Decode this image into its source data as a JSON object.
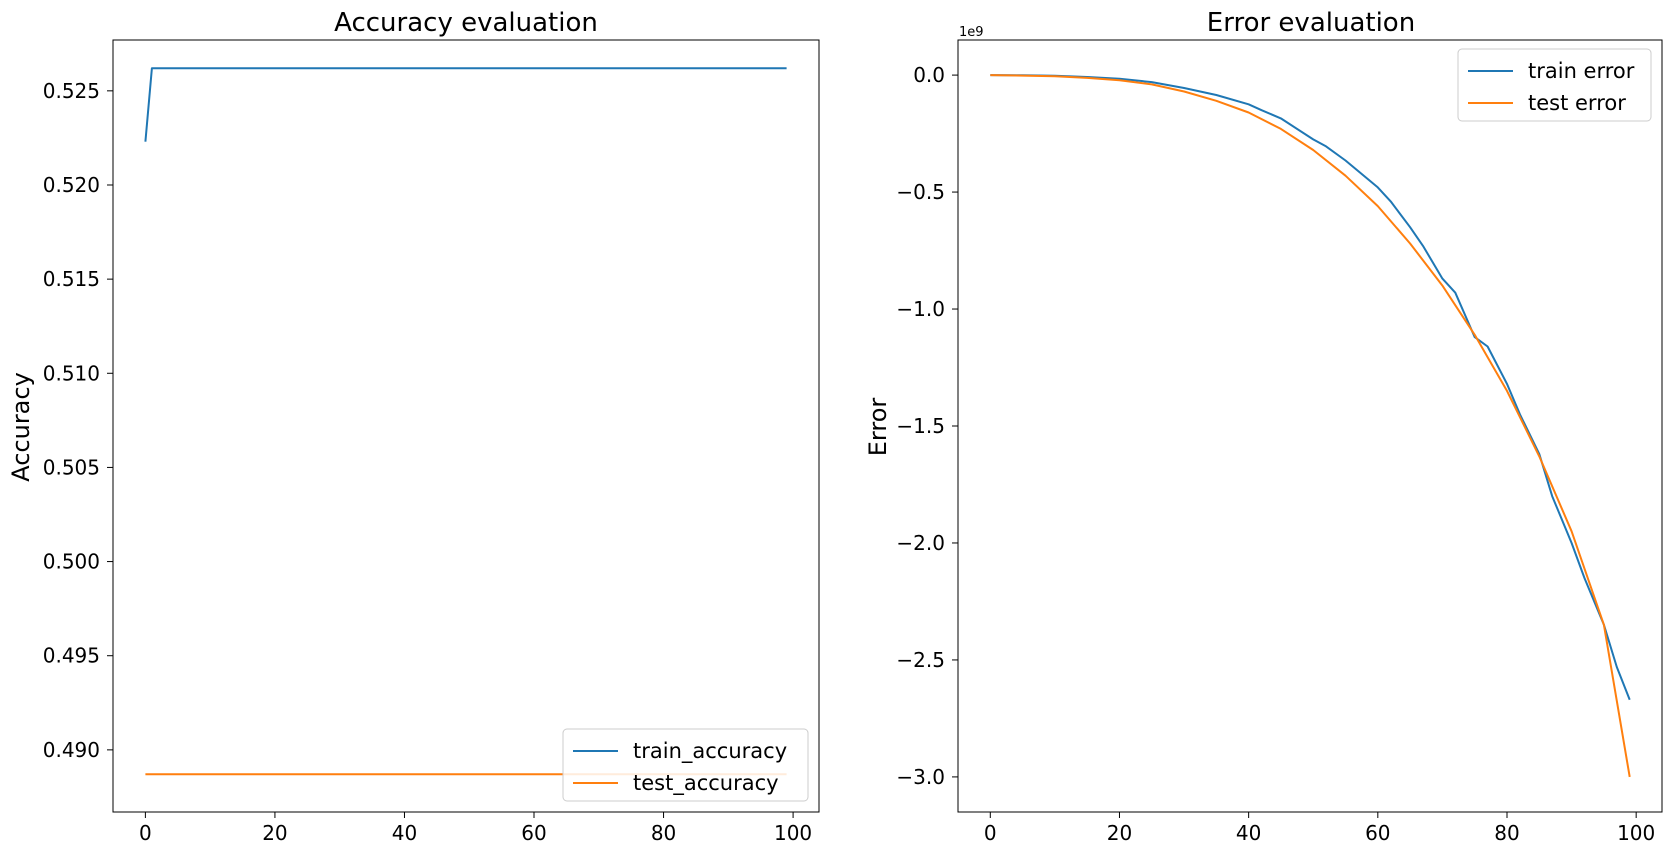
{
  "chart_data": [
    {
      "type": "line",
      "title": "Accuracy evaluation",
      "xlabel": "",
      "ylabel": "Accuracy",
      "xlim": [
        -5,
        104
      ],
      "ylim": [
        0.4867,
        0.5277
      ],
      "xticks": [
        0,
        20,
        40,
        60,
        80,
        100
      ],
      "xtick_labels": [
        "0",
        "20",
        "40",
        "60",
        "80",
        "100"
      ],
      "yticks": [
        0.49,
        0.495,
        0.5,
        0.505,
        0.51,
        0.515,
        0.52,
        0.525
      ],
      "ytick_labels": [
        "0.490",
        "0.495",
        "0.500",
        "0.505",
        "0.510",
        "0.515",
        "0.520",
        "0.525"
      ],
      "grid": false,
      "legend_position": "lower-right",
      "series": [
        {
          "name": "train_accuracy",
          "color": "#1f77b4",
          "x": [
            0,
            1,
            99
          ],
          "y": [
            0.5223,
            0.5262,
            0.5262
          ]
        },
        {
          "name": "test_accuracy",
          "color": "#ff7f0e",
          "x": [
            0,
            99
          ],
          "y": [
            0.4887,
            0.4887
          ]
        }
      ]
    },
    {
      "type": "line",
      "title": "Error evaluation",
      "xlabel": "",
      "ylabel": "Error",
      "y_offset_label": "1e9",
      "xlim": [
        -5,
        104
      ],
      "ylim": [
        -3.15,
        0.15
      ],
      "xticks": [
        0,
        20,
        40,
        60,
        80,
        100
      ],
      "xtick_labels": [
        "0",
        "20",
        "40",
        "60",
        "80",
        "100"
      ],
      "yticks": [
        0.0,
        -0.5,
        -1.0,
        -1.5,
        -2.0,
        -2.5,
        -3.0
      ],
      "ytick_labels": [
        "0.0",
        "−0.5",
        "−1.0",
        "−1.5",
        "−2.0",
        "−2.5",
        "−3.0"
      ],
      "grid": false,
      "legend_position": "upper-right",
      "series": [
        {
          "name": "train error",
          "color": "#1f77b4",
          "x": [
            0,
            5,
            10,
            15,
            20,
            25,
            30,
            35,
            40,
            42,
            45,
            50,
            52,
            55,
            60,
            62,
            65,
            67,
            70,
            72,
            75,
            77,
            80,
            82,
            85,
            87,
            90,
            92,
            95,
            97,
            99
          ],
          "y": [
            0.0,
            -0.001,
            -0.003,
            -0.008,
            -0.016,
            -0.03,
            -0.055,
            -0.085,
            -0.125,
            -0.15,
            -0.185,
            -0.275,
            -0.305,
            -0.365,
            -0.48,
            -0.54,
            -0.65,
            -0.73,
            -0.87,
            -0.93,
            -1.12,
            -1.16,
            -1.32,
            -1.45,
            -1.62,
            -1.8,
            -2.0,
            -2.15,
            -2.35,
            -2.53,
            -2.67
          ]
        },
        {
          "name": "test error",
          "color": "#ff7f0e",
          "x": [
            0,
            5,
            10,
            15,
            20,
            25,
            30,
            35,
            40,
            45,
            50,
            55,
            60,
            65,
            70,
            75,
            80,
            85,
            90,
            95,
            99
          ],
          "y": [
            0.0,
            -0.002,
            -0.005,
            -0.012,
            -0.022,
            -0.04,
            -0.07,
            -0.11,
            -0.16,
            -0.23,
            -0.32,
            -0.43,
            -0.56,
            -0.72,
            -0.9,
            -1.11,
            -1.35,
            -1.63,
            -1.95,
            -2.35,
            -3.0
          ]
        }
      ]
    }
  ]
}
